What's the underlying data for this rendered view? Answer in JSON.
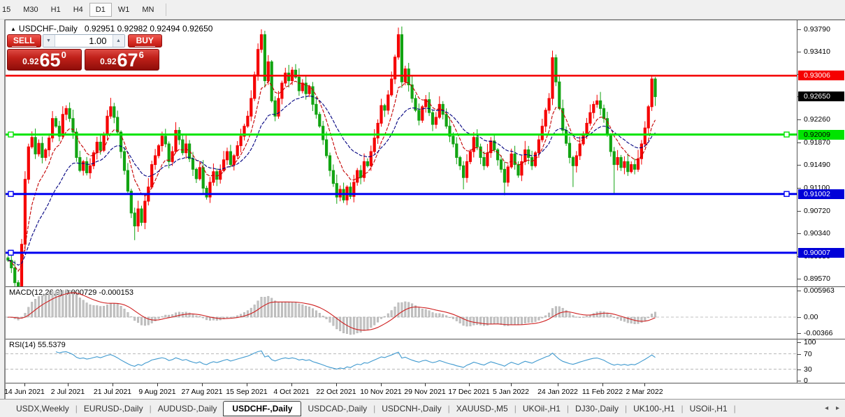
{
  "toolbar": {
    "timeframes": [
      {
        "label": "15",
        "active": false
      },
      {
        "label": "M30",
        "active": false
      },
      {
        "label": "H1",
        "active": false
      },
      {
        "label": "H4",
        "active": false
      },
      {
        "label": "D1",
        "active": true
      },
      {
        "label": "W1",
        "active": false
      },
      {
        "label": "MN",
        "active": false
      }
    ]
  },
  "chart_header": {
    "collapse_icon": "▲",
    "symbol": "USDCHF-,Daily",
    "ohlc": "0.92951 0.92982 0.92494 0.92650"
  },
  "trade_panel": {
    "sell_label": "SELL",
    "buy_label": "BUY",
    "volume": "1.00",
    "spinner_down": "▼",
    "spinner_up": "▲",
    "sell_price": {
      "prefix": "0.92",
      "big": "65",
      "sup": "0"
    },
    "buy_price": {
      "prefix": "0.92",
      "big": "67",
      "sup": "6"
    }
  },
  "price_axis": {
    "ticks": [
      "0.93790",
      "0.93410",
      "0.93030",
      "0.92650",
      "0.92260",
      "0.91870",
      "0.91490",
      "0.91100",
      "0.90720",
      "0.90340",
      "0.89950",
      "0.89570"
    ],
    "badges": [
      {
        "value": "0.93006",
        "bg": "#f50000",
        "fg": "#ffffff",
        "role": "resistance-level"
      },
      {
        "value": "0.92650",
        "bg": "#000000",
        "fg": "#ffffff",
        "role": "current-price"
      },
      {
        "value": "0.92009",
        "bg": "#00e400",
        "fg": "#000000",
        "role": "support-level"
      },
      {
        "value": "0.91002",
        "bg": "#0000d8",
        "fg": "#ffffff",
        "role": "support-level"
      },
      {
        "value": "0.90007",
        "bg": "#0000d8",
        "fg": "#ffffff",
        "role": "support-level"
      }
    ]
  },
  "macd_panel": {
    "label": "MACD(12,26,9) 0.000729 -0.000153",
    "ticks": [
      "0.005963",
      "0.00",
      "-0.00366"
    ]
  },
  "rsi_panel": {
    "label": "RSI(14) 55.5379",
    "ticks": [
      "100",
      "70",
      "30",
      "0"
    ]
  },
  "x_axis": {
    "dates": [
      "14 Jun 2021",
      "2 Jul 2021",
      "21 Jul 2021",
      "9 Aug 2021",
      "27 Aug 2021",
      "15 Sep 2021",
      "4 Oct 2021",
      "22 Oct 2021",
      "10 Nov 2021",
      "29 Nov 2021",
      "17 Dec 2021",
      "5 Jan 2022",
      "24 Jan 2022",
      "11 Feb 2022",
      "2 Mar 2022"
    ]
  },
  "tabs": {
    "items": [
      "USDX,Weekly",
      "EURUSD-,Daily",
      "AUDUSD-,Daily",
      "USDCHF-,Daily",
      "USDCAD-,Daily",
      "USDCNH-,Daily",
      "XAUUSD-,M5",
      "UKOil-,H1",
      "DJ30-,Daily",
      "UK100-,H1",
      "USOil-,H1"
    ],
    "active_index": 3,
    "separator": "|",
    "scroll_left": "◂",
    "scroll_right": "▸"
  },
  "chart_data": {
    "type": "candlestick",
    "symbol": "USDCHF",
    "timeframe": "Daily",
    "last_bar_ohlc": {
      "open": 0.92951,
      "high": 0.92982,
      "low": 0.92494,
      "close": 0.9265
    },
    "price_range": {
      "top": 0.93944,
      "bottom": 0.89437
    },
    "first_open": 0.8992,
    "closes": [
      0.8988,
      0.8975,
      0.895,
      0.8942,
      0.9015,
      0.9125,
      0.918,
      0.9196,
      0.9168,
      0.9186,
      0.9162,
      0.9175,
      0.9195,
      0.9228,
      0.9215,
      0.9198,
      0.9235,
      0.9245,
      0.9228,
      0.9205,
      0.9162,
      0.914,
      0.9155,
      0.9136,
      0.9148,
      0.917,
      0.9188,
      0.9174,
      0.92,
      0.9232,
      0.9248,
      0.923,
      0.9205,
      0.9172,
      0.914,
      0.9105,
      0.9068,
      0.9046,
      0.9075,
      0.9052,
      0.9088,
      0.9112,
      0.915,
      0.9165,
      0.9182,
      0.9198,
      0.9185,
      0.9155,
      0.9172,
      0.9208,
      0.9192,
      0.917,
      0.9185,
      0.916,
      0.9142,
      0.9126,
      0.9145,
      0.911,
      0.9095,
      0.912,
      0.9138,
      0.9125,
      0.914,
      0.9158,
      0.9172,
      0.915,
      0.9165,
      0.9182,
      0.9198,
      0.9215,
      0.9232,
      0.9262,
      0.9302,
      0.9345,
      0.937,
      0.9292,
      0.9324,
      0.9258,
      0.9232,
      0.9262,
      0.9288,
      0.9305,
      0.9292,
      0.931,
      0.9298,
      0.9275,
      0.9288,
      0.927,
      0.9282,
      0.9252,
      0.9235,
      0.9215,
      0.9192,
      0.9165,
      0.914,
      0.9118,
      0.9095,
      0.9108,
      0.909,
      0.9112,
      0.9096,
      0.912,
      0.914,
      0.9128,
      0.9155,
      0.9148,
      0.9172,
      0.9195,
      0.922,
      0.925,
      0.9242,
      0.9268,
      0.9295,
      0.9332,
      0.937,
      0.929,
      0.9312,
      0.9285,
      0.9262,
      0.9242,
      0.9225,
      0.9248,
      0.926,
      0.9238,
      0.9218,
      0.923,
      0.9252,
      0.9235,
      0.9215,
      0.9198,
      0.9185,
      0.9162,
      0.9148,
      0.9128,
      0.9155,
      0.9172,
      0.9196,
      0.918,
      0.9162,
      0.9148,
      0.917,
      0.919,
      0.9175,
      0.9158,
      0.9142,
      0.912,
      0.9146,
      0.9168,
      0.915,
      0.9132,
      0.9155,
      0.9175,
      0.9162,
      0.9148,
      0.917,
      0.9192,
      0.9215,
      0.9242,
      0.9262,
      0.9331,
      0.929,
      0.9245,
      0.9208,
      0.9186,
      0.9162,
      0.9148,
      0.9165,
      0.9185,
      0.9202,
      0.922,
      0.9238,
      0.9252,
      0.9258,
      0.9245,
      0.9228,
      0.92,
      0.9172,
      0.915,
      0.9162,
      0.9145,
      0.9155,
      0.9138,
      0.915,
      0.9142,
      0.916,
      0.9185,
      0.9212,
      0.9248,
      0.9295,
      0.9265
    ],
    "wick_overrides": {
      "2": {
        "low": 0.8925
      },
      "37": {
        "low": 0.9022
      },
      "74": {
        "high": 0.9379
      },
      "98": {
        "low": 0.9085
      },
      "114": {
        "high": 0.9382
      },
      "133": {
        "low": 0.9108
      },
      "145": {
        "low": 0.9098
      },
      "159": {
        "high": 0.9343
      },
      "165": {
        "low": 0.9112
      },
      "177": {
        "low": 0.91
      },
      "188": {
        "high": 0.9301
      },
      "189": {
        "high": 0.92982,
        "low": 0.92494
      }
    },
    "levels": [
      {
        "price": 0.93006,
        "color": "#f50000",
        "handles": ""
      },
      {
        "price": 0.92009,
        "color": "#00e400",
        "handles": "lr"
      },
      {
        "price": 0.91002,
        "color": "#0000f0",
        "handles": "lr"
      },
      {
        "price": 0.90007,
        "color": "#0000f0",
        "handles": "l"
      }
    ],
    "colors": {
      "bull": "#f50000",
      "bear": "#12a412",
      "ma_fast": "#c40000",
      "ma_slow": "#000080",
      "macd_hist": "#c2c2c2",
      "macd_signal": "#cf1f1f",
      "rsi_line": "#3f99cf",
      "guide_dash": "#c0c0c0"
    },
    "ma_fast_period": 8,
    "ma_slow_period": 21,
    "macd": {
      "fast": 12,
      "slow": 26,
      "signal": 9,
      "axis_top": 0.005963,
      "axis_bottom": -0.00366
    },
    "rsi": {
      "period": 14,
      "value": 55.5379,
      "guides": [
        70,
        30
      ]
    }
  }
}
